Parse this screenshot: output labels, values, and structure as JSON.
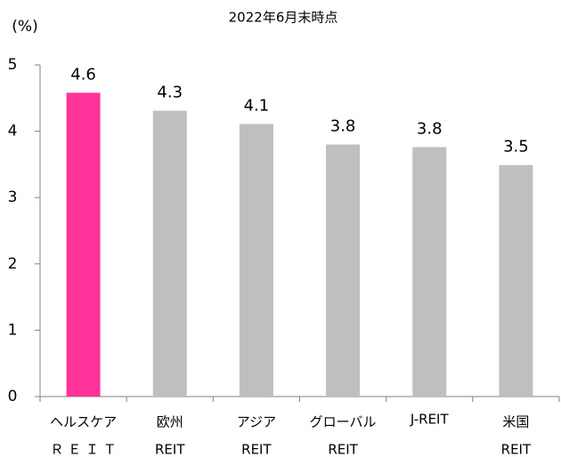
{
  "chart_data": {
    "type": "bar",
    "title": "2022年6月末時点",
    "y_label": "(%)",
    "categories": [
      [
        "ヘルスケア",
        "Ｒ Ｅ Ｉ Ｔ"
      ],
      [
        "欧州",
        "REIT"
      ],
      [
        "アジア",
        "REIT"
      ],
      [
        "グローバル",
        "REIT"
      ],
      [
        "J-REIT"
      ],
      [
        "米国",
        "REIT"
      ]
    ],
    "values": [
      4.58,
      4.31,
      4.11,
      3.8,
      3.76,
      3.49
    ],
    "value_labels": [
      "4.6",
      "4.3",
      "4.1",
      "3.8",
      "3.8",
      "3.5"
    ],
    "colors": [
      "#ff3399",
      "#bfbfbf",
      "#bfbfbf",
      "#bfbfbf",
      "#bfbfbf",
      "#bfbfbf"
    ],
    "ylim": [
      0,
      5
    ],
    "yticks": [
      0,
      1,
      2,
      3,
      4,
      5
    ],
    "grid": false
  }
}
